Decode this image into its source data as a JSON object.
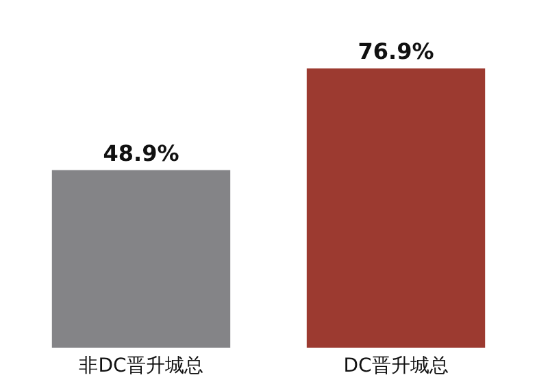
{
  "chart_data": {
    "type": "bar",
    "categories": [
      "非DC晋升城总",
      "DC晋升城总"
    ],
    "values": [
      48.9,
      76.9
    ],
    "value_labels": [
      "48.9%",
      "76.9%"
    ],
    "colors": [
      "#848487",
      "#9c3a30"
    ],
    "tick_labels": "x"
  }
}
